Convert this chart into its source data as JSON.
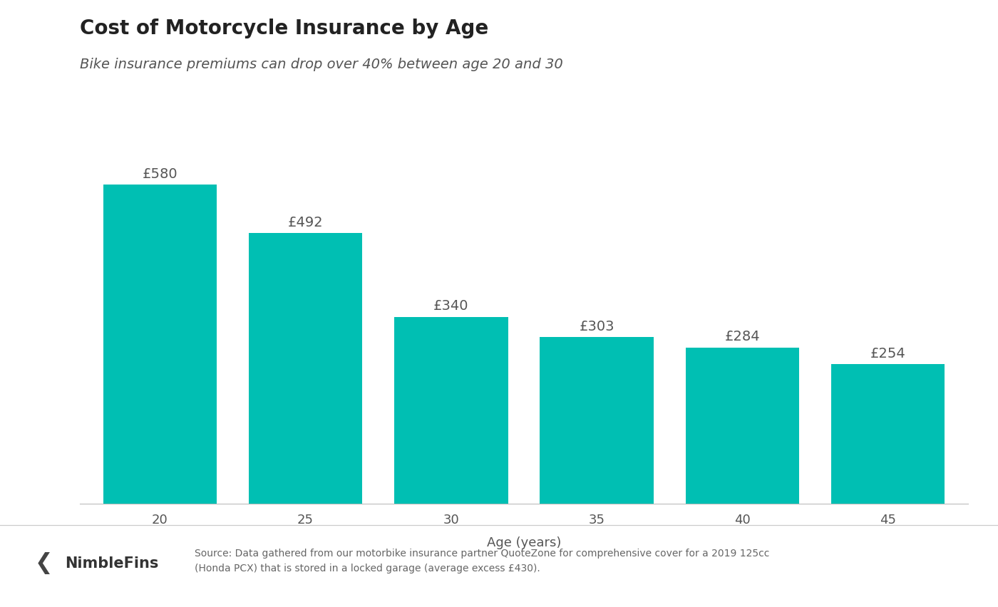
{
  "title": "Cost of Motorcycle Insurance by Age",
  "subtitle": "Bike insurance premiums can drop over 40% between age 20 and 30",
  "xlabel": "Age (years)",
  "categories": [
    "20",
    "25",
    "30",
    "35",
    "40",
    "45"
  ],
  "values": [
    580,
    492,
    340,
    303,
    284,
    254
  ],
  "bar_color": "#00BFB3",
  "label_color": "#555555",
  "title_color": "#222222",
  "background_color": "#ffffff",
  "title_fontsize": 20,
  "subtitle_fontsize": 14,
  "value_label_fontsize": 14,
  "axis_label_fontsize": 13,
  "tick_fontsize": 13,
  "source_fontsize": 10,
  "brand_fontsize": 15,
  "source_text": "Source: Data gathered from our motorbike insurance partner QuoteZone for comprehensive cover for a 2019 125cc\n(Honda PCX) that is stored in a locked garage (average excess £430).",
  "brand_text": "NimbleFins",
  "ylim": [
    0,
    640
  ],
  "bar_width": 0.78
}
